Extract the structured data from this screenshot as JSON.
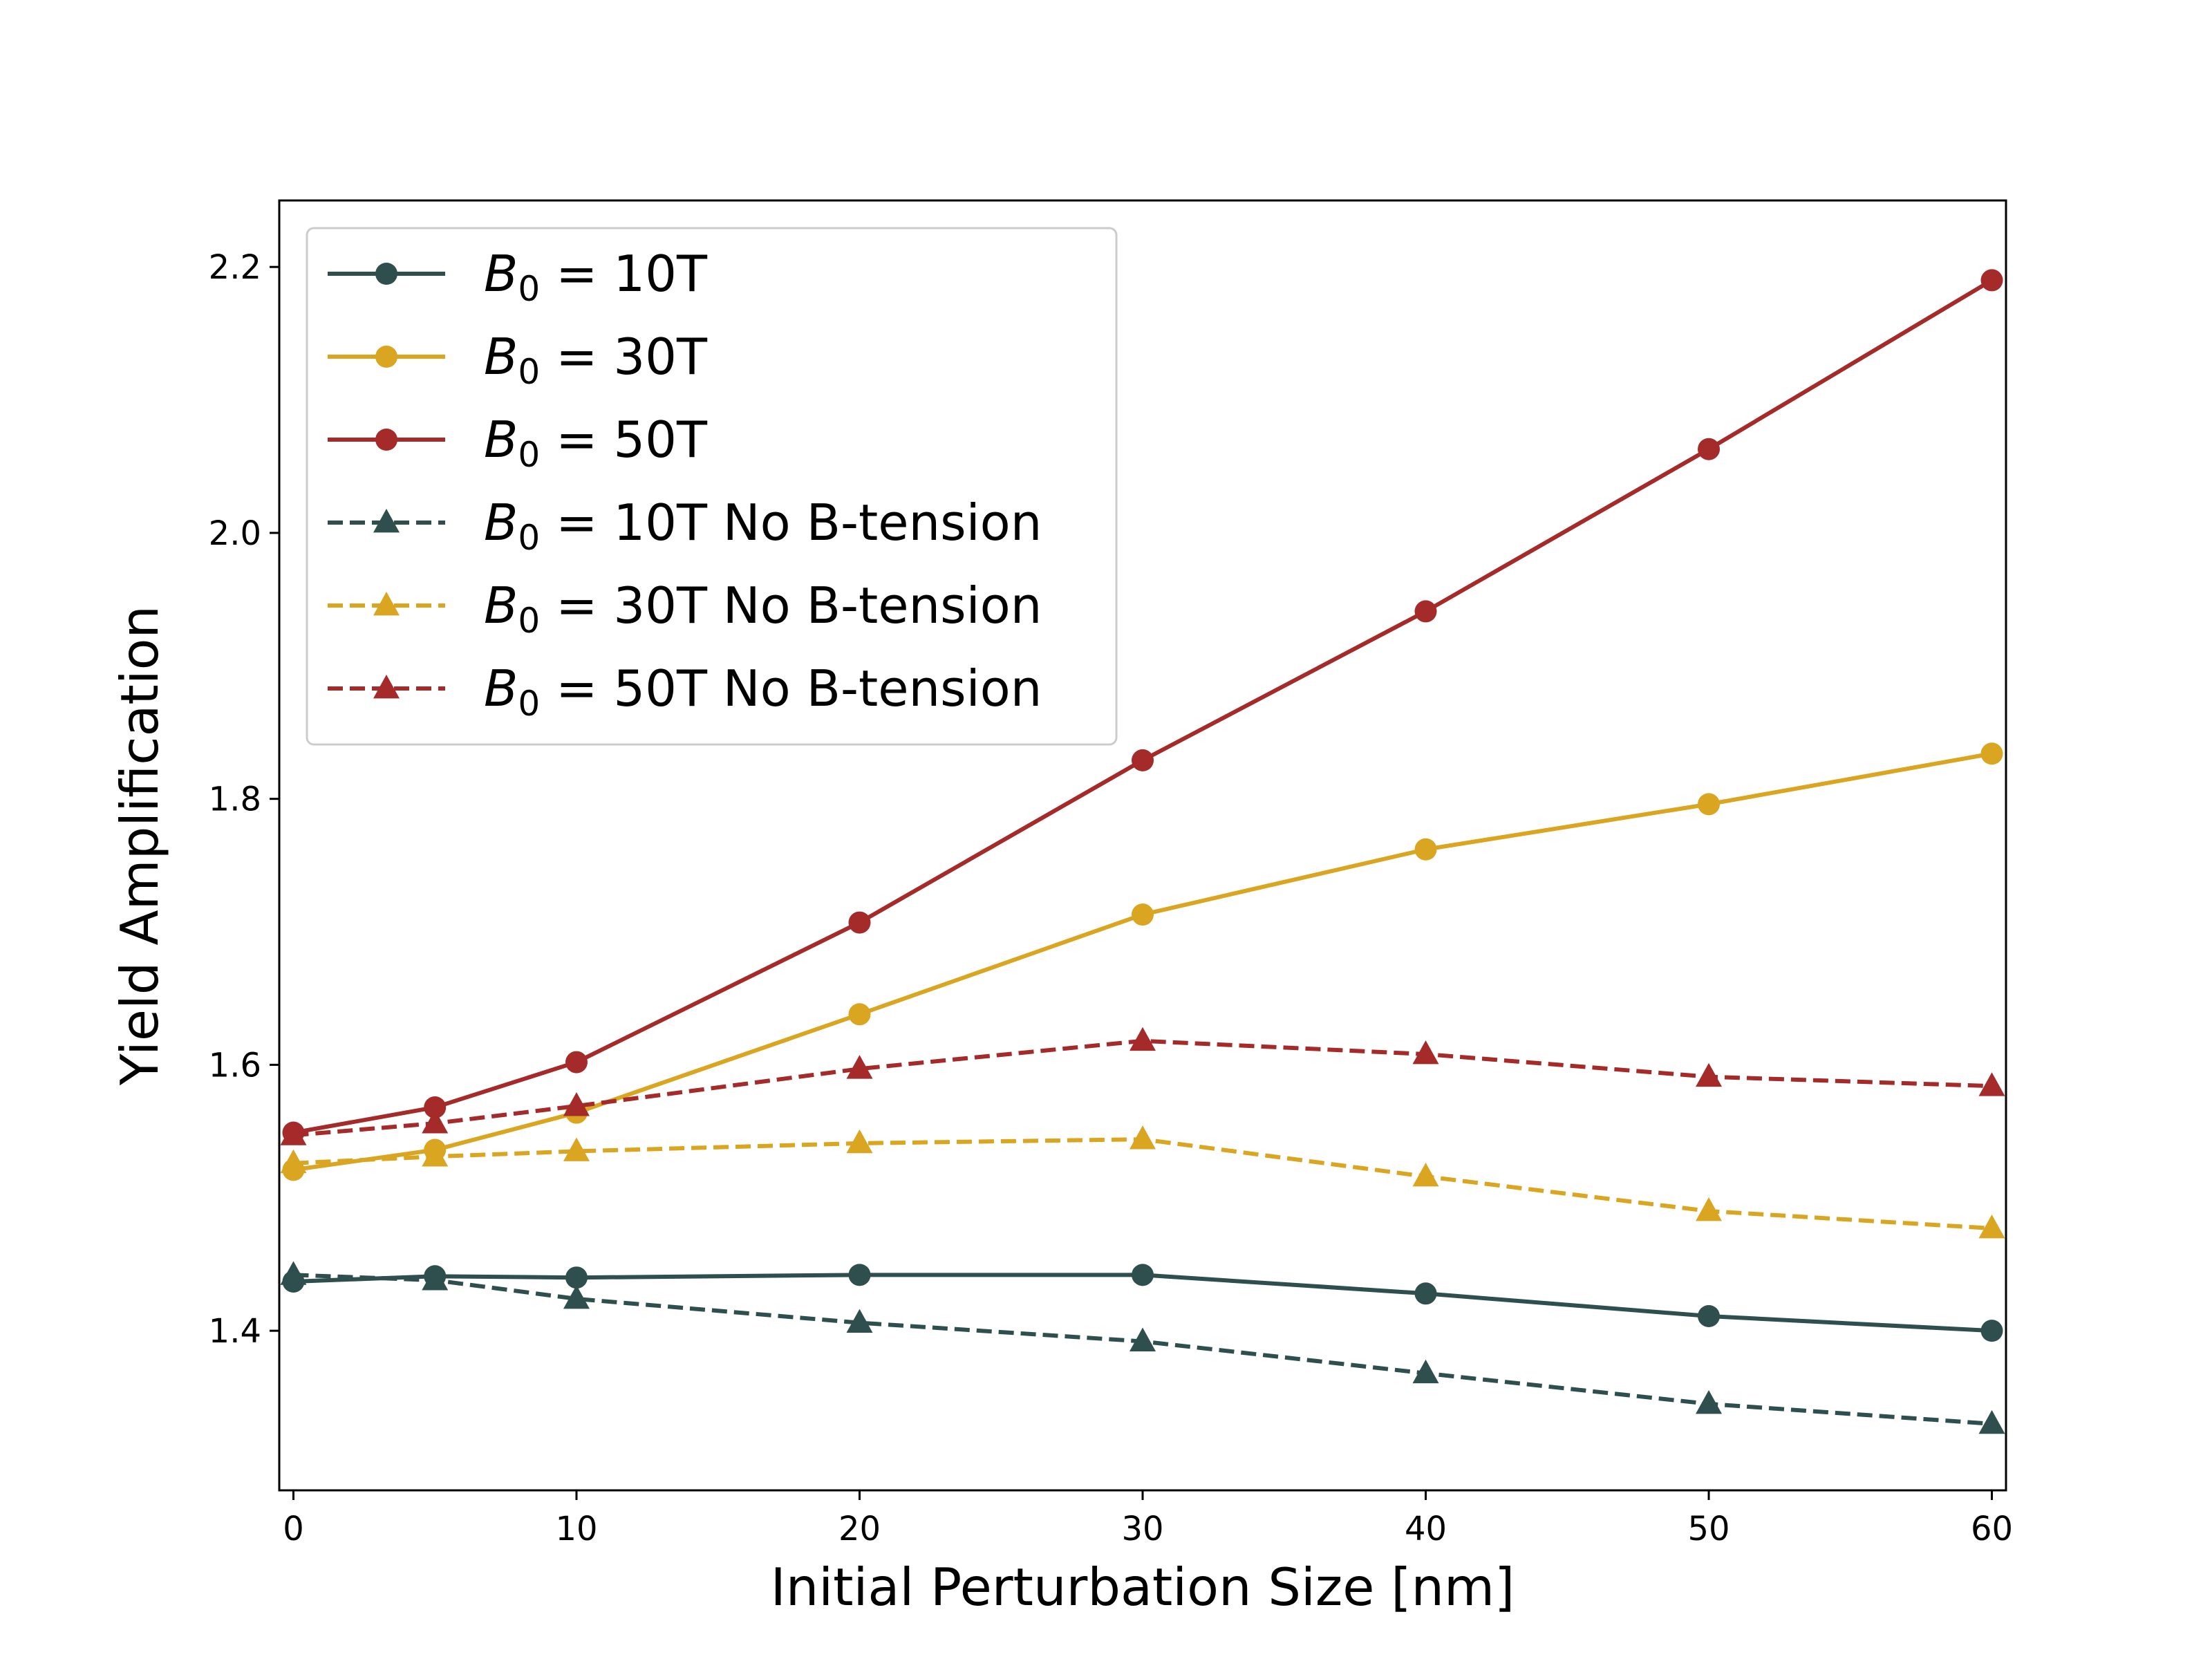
{
  "chart_data": {
    "type": "line",
    "title": "",
    "xlabel": "Initial Perturbation Size [nm]",
    "ylabel": "Yield Amplification",
    "xlim": [
      -0.5,
      60.5
    ],
    "ylim": [
      1.28,
      2.25
    ],
    "x": [
      0,
      5,
      10,
      20,
      30,
      40,
      50,
      60
    ],
    "xticks": [
      0,
      10,
      20,
      30,
      40,
      50,
      60
    ],
    "xtick_labels": [
      "0",
      "10",
      "20",
      "30",
      "40",
      "50",
      "60"
    ],
    "yticks": [
      1.4,
      1.6,
      1.8,
      2.0,
      2.2
    ],
    "ytick_labels": [
      "1.4",
      "1.6",
      "1.8",
      "2.0",
      "2.2"
    ],
    "grid": false,
    "legend_position": "top-left",
    "series": [
      {
        "name": "B_0 = 10T",
        "legend_symbol": "B",
        "legend_subscript": "0",
        "legend_rest": " = 10T",
        "color": "#2f4f4f",
        "linestyle": "solid",
        "marker": "circle",
        "values": [
          1.437,
          1.441,
          1.44,
          1.442,
          1.442,
          1.428,
          1.411,
          1.4
        ]
      },
      {
        "name": "B_0 = 30T",
        "legend_symbol": "B",
        "legend_subscript": "0",
        "legend_rest": " = 30T",
        "color": "#daa520",
        "linestyle": "solid",
        "marker": "circle",
        "values": [
          1.521,
          1.536,
          1.564,
          1.638,
          1.713,
          1.762,
          1.796,
          1.834
        ]
      },
      {
        "name": "B_0 = 50T",
        "legend_symbol": "B",
        "legend_subscript": "0",
        "legend_rest": " = 50T",
        "color": "#a52a2a",
        "linestyle": "solid",
        "marker": "circle",
        "values": [
          1.549,
          1.568,
          1.602,
          1.707,
          1.829,
          1.941,
          2.063,
          2.19
        ]
      },
      {
        "name": "B_0 = 10T No B-tension",
        "legend_symbol": "B",
        "legend_subscript": "0",
        "legend_rest": " = 10T No B-tension",
        "color": "#2f4f4f",
        "linestyle": "dashed",
        "marker": "triangle",
        "values": [
          1.442,
          1.438,
          1.424,
          1.406,
          1.392,
          1.368,
          1.345,
          1.33
        ]
      },
      {
        "name": "B_0 = 30T No B-tension",
        "legend_symbol": "B",
        "legend_subscript": "0",
        "legend_rest": " = 30T No B-tension",
        "color": "#daa520",
        "linestyle": "dashed",
        "marker": "triangle",
        "values": [
          1.526,
          1.531,
          1.535,
          1.541,
          1.544,
          1.516,
          1.49,
          1.477
        ]
      },
      {
        "name": "B_0 = 50T No B-tension",
        "legend_symbol": "B",
        "legend_subscript": "0",
        "legend_rest": " = 50T No B-tension",
        "color": "#a52a2a",
        "linestyle": "dashed",
        "marker": "triangle",
        "values": [
          1.547,
          1.556,
          1.569,
          1.597,
          1.618,
          1.608,
          1.591,
          1.584
        ]
      }
    ]
  }
}
